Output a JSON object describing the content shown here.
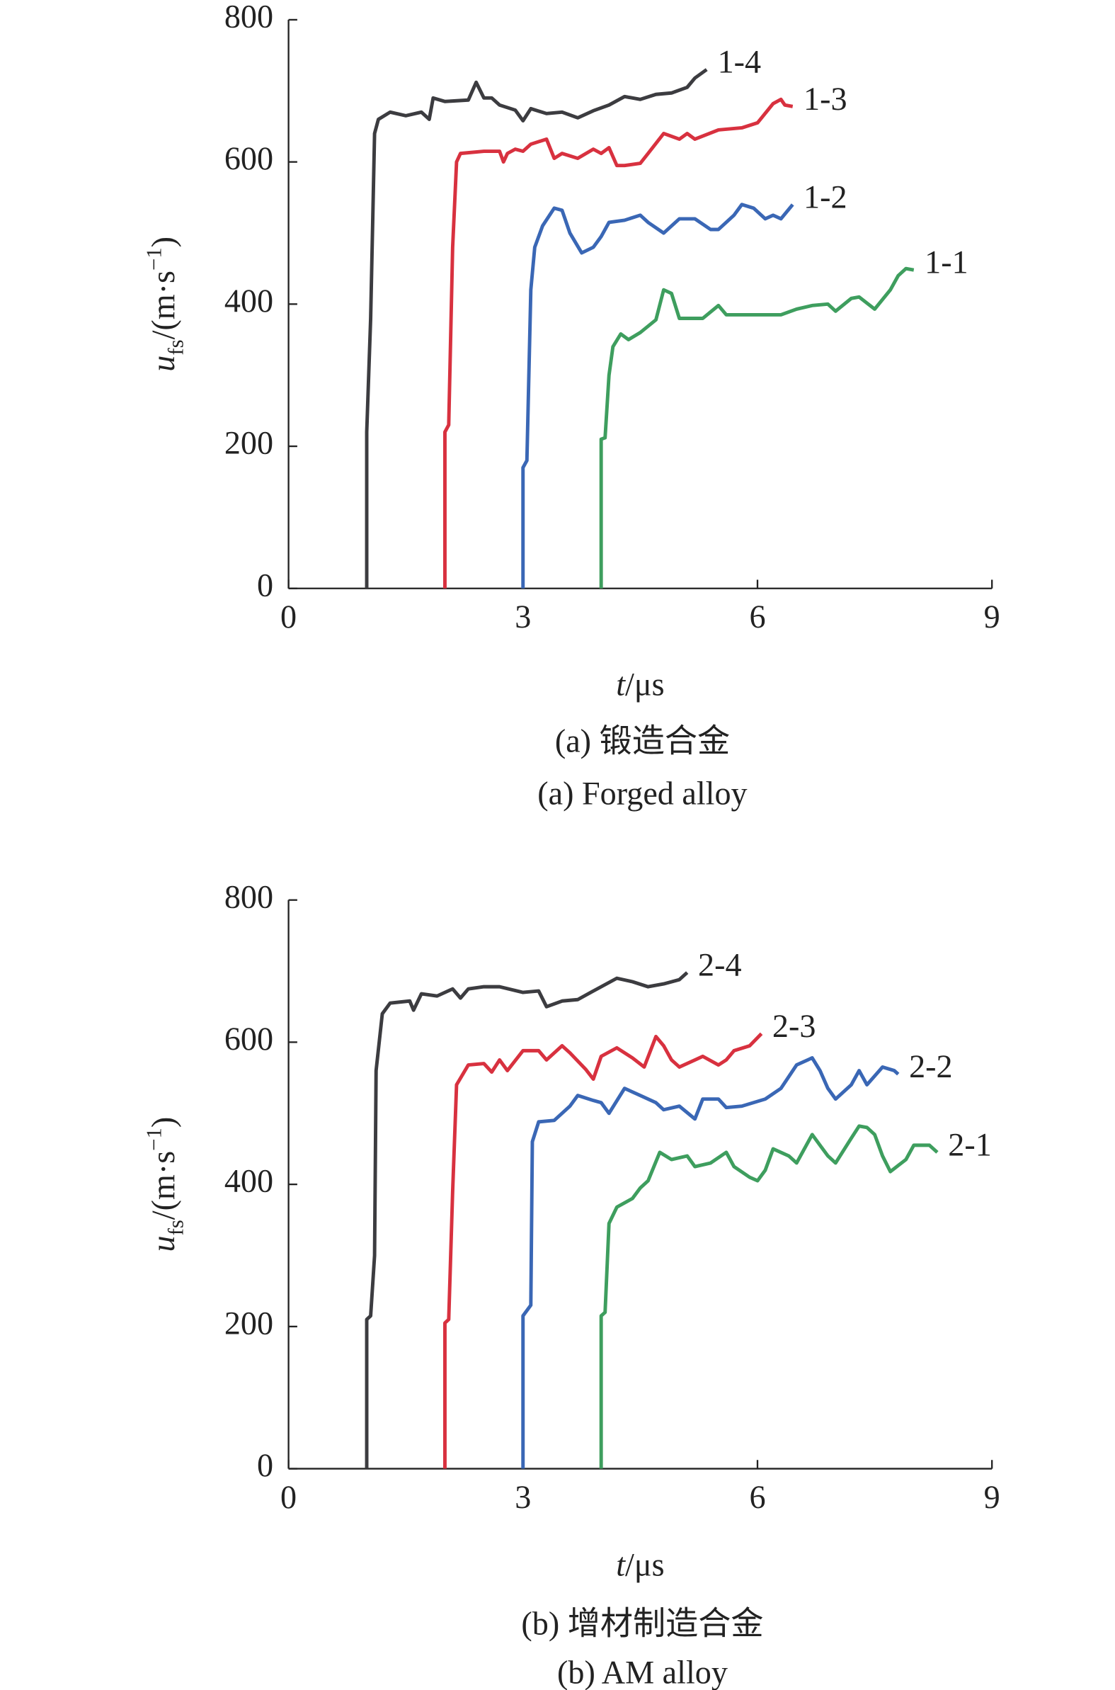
{
  "chart_data": [
    {
      "type": "line",
      "xlabel": [
        "t",
        "/μs"
      ],
      "ylabel": [
        "u",
        "fs",
        "/(m·s",
        "−1",
        ")"
      ],
      "captions": [
        "(a) 锻造合金",
        "(a) Forged alloy"
      ],
      "xlim": [
        0,
        9
      ],
      "xticks": [
        0,
        3,
        6,
        9
      ],
      "ylim": [
        0,
        800
      ],
      "yticks": [
        0,
        200,
        400,
        600,
        800
      ],
      "label_color": "#6b2f93",
      "series": [
        {
          "name": "1-4",
          "color": "#3c3c40",
          "x": [
            1.0,
            1.0,
            1.05,
            1.1,
            1.15,
            1.3,
            1.5,
            1.7,
            1.8,
            1.85,
            2.0,
            2.3,
            2.4,
            2.5,
            2.6,
            2.7,
            2.9,
            3.0,
            3.1,
            3.3,
            3.5,
            3.7,
            3.9,
            4.1,
            4.3,
            4.5,
            4.7,
            4.9,
            5.1,
            5.2,
            5.35
          ],
          "values": [
            0,
            220,
            380,
            640,
            660,
            670,
            665,
            670,
            660,
            690,
            685,
            687,
            712,
            690,
            690,
            680,
            673,
            658,
            675,
            668,
            670,
            662,
            672,
            680,
            692,
            688,
            695,
            697,
            705,
            718,
            730
          ]
        },
        {
          "name": "1-3",
          "color": "#d8313f",
          "x": [
            2.0,
            2.0,
            2.05,
            2.1,
            2.15,
            2.2,
            2.5,
            2.7,
            2.75,
            2.8,
            2.9,
            3.0,
            3.1,
            3.3,
            3.4,
            3.5,
            3.7,
            3.9,
            4.0,
            4.1,
            4.2,
            4.3,
            4.5,
            4.6,
            4.8,
            5.0,
            5.1,
            5.2,
            5.5,
            5.8,
            6.0,
            6.2,
            6.3,
            6.35,
            6.45
          ],
          "values": [
            0,
            220,
            230,
            480,
            600,
            612,
            615,
            615,
            600,
            612,
            618,
            615,
            625,
            632,
            605,
            612,
            605,
            618,
            612,
            620,
            595,
            595,
            598,
            612,
            640,
            632,
            640,
            632,
            645,
            648,
            655,
            682,
            688,
            680,
            678
          ]
        },
        {
          "name": "1-2",
          "color": "#3a67b5",
          "x": [
            3.0,
            3.0,
            3.05,
            3.1,
            3.15,
            3.25,
            3.4,
            3.5,
            3.6,
            3.75,
            3.9,
            4.0,
            4.1,
            4.3,
            4.5,
            4.6,
            4.8,
            5.0,
            5.2,
            5.4,
            5.5,
            5.7,
            5.8,
            5.95,
            6.1,
            6.2,
            6.3,
            6.45
          ],
          "values": [
            0,
            170,
            180,
            420,
            480,
            510,
            535,
            532,
            500,
            472,
            480,
            495,
            515,
            518,
            525,
            515,
            500,
            520,
            520,
            505,
            505,
            525,
            540,
            535,
            520,
            525,
            520,
            540
          ]
        },
        {
          "name": "1-1",
          "color": "#3e9e5e",
          "x": [
            4.0,
            4.0,
            4.05,
            4.1,
            4.15,
            4.25,
            4.35,
            4.5,
            4.7,
            4.8,
            4.9,
            5.0,
            5.3,
            5.5,
            5.6,
            6.0,
            6.3,
            6.5,
            6.7,
            6.9,
            7.0,
            7.2,
            7.3,
            7.5,
            7.7,
            7.8,
            7.9,
            8.0
          ],
          "values": [
            0,
            210,
            212,
            300,
            340,
            358,
            350,
            360,
            378,
            420,
            415,
            380,
            380,
            398,
            385,
            385,
            385,
            393,
            398,
            400,
            390,
            408,
            410,
            393,
            420,
            440,
            450,
            448
          ]
        }
      ]
    },
    {
      "type": "line",
      "xlabel": [
        "t",
        "/μs"
      ],
      "ylabel": [
        "u",
        "fs",
        "/(m·s",
        "−1",
        ")"
      ],
      "captions": [
        "(b) 增材制造合金",
        "(b) AM alloy"
      ],
      "xlim": [
        0,
        9
      ],
      "xticks": [
        0,
        3,
        6,
        9
      ],
      "ylim": [
        0,
        800
      ],
      "yticks": [
        0,
        200,
        400,
        600,
        800
      ],
      "label_color": "#6b2f93",
      "series": [
        {
          "name": "2-4",
          "color": "#3c3c40",
          "x": [
            1.0,
            1.0,
            1.05,
            1.1,
            1.12,
            1.2,
            1.3,
            1.55,
            1.6,
            1.7,
            1.9,
            2.1,
            2.2,
            2.3,
            2.5,
            2.7,
            3.0,
            3.2,
            3.3,
            3.5,
            3.7,
            3.9,
            4.2,
            4.4,
            4.6,
            4.8,
            5.0,
            5.1
          ],
          "values": [
            0,
            210,
            215,
            300,
            560,
            640,
            655,
            658,
            645,
            668,
            665,
            675,
            662,
            675,
            678,
            678,
            670,
            672,
            650,
            658,
            660,
            672,
            690,
            685,
            678,
            682,
            688,
            698
          ]
        },
        {
          "name": "2-3",
          "color": "#d8313f",
          "x": [
            2.0,
            2.0,
            2.05,
            2.1,
            2.15,
            2.3,
            2.5,
            2.6,
            2.7,
            2.8,
            3.0,
            3.2,
            3.3,
            3.5,
            3.6,
            3.8,
            3.9,
            4.0,
            4.2,
            4.4,
            4.55,
            4.7,
            4.8,
            4.9,
            5.0,
            5.2,
            5.3,
            5.5,
            5.6,
            5.7,
            5.9,
            6.05
          ],
          "values": [
            0,
            205,
            210,
            390,
            540,
            568,
            570,
            558,
            575,
            560,
            588,
            588,
            575,
            595,
            585,
            562,
            548,
            580,
            592,
            578,
            565,
            608,
            595,
            575,
            565,
            575,
            580,
            568,
            575,
            588,
            595,
            612
          ]
        },
        {
          "name": "2-2",
          "color": "#3a67b5",
          "x": [
            3.0,
            3.0,
            3.1,
            3.12,
            3.2,
            3.4,
            3.6,
            3.7,
            3.9,
            4.0,
            4.1,
            4.3,
            4.5,
            4.7,
            4.8,
            5.0,
            5.2,
            5.3,
            5.5,
            5.6,
            5.8,
            6.1,
            6.3,
            6.5,
            6.7,
            6.8,
            6.9,
            7.0,
            7.2,
            7.3,
            7.4,
            7.6,
            7.75,
            7.8
          ],
          "values": [
            0,
            215,
            230,
            460,
            488,
            490,
            510,
            525,
            518,
            515,
            500,
            535,
            525,
            515,
            505,
            510,
            492,
            520,
            520,
            508,
            510,
            520,
            535,
            568,
            578,
            560,
            535,
            520,
            540,
            560,
            540,
            565,
            560,
            555
          ]
        },
        {
          "name": "2-1",
          "color": "#3e9e5e",
          "x": [
            4.0,
            4.0,
            4.05,
            4.1,
            4.2,
            4.4,
            4.5,
            4.6,
            4.75,
            4.9,
            5.1,
            5.2,
            5.4,
            5.6,
            5.7,
            5.9,
            6.0,
            6.1,
            6.2,
            6.4,
            6.5,
            6.7,
            6.8,
            6.9,
            7.0,
            7.2,
            7.3,
            7.4,
            7.5,
            7.6,
            7.7,
            7.9,
            8.0,
            8.2,
            8.3
          ],
          "values": [
            0,
            215,
            220,
            345,
            368,
            380,
            395,
            405,
            445,
            435,
            440,
            425,
            430,
            445,
            425,
            410,
            405,
            420,
            450,
            440,
            430,
            470,
            455,
            440,
            430,
            465,
            482,
            480,
            470,
            440,
            418,
            435,
            455,
            455,
            445
          ]
        }
      ]
    }
  ]
}
